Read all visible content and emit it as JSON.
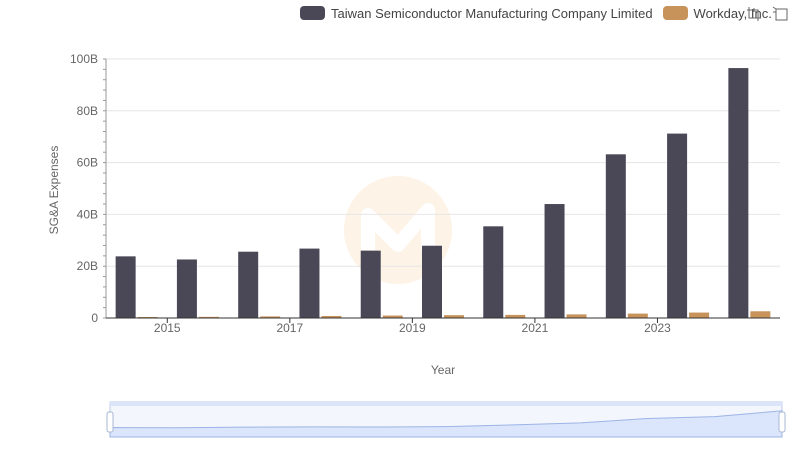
{
  "legend": {
    "items": [
      {
        "label": "Taiwan Semiconductor Manufacturing Company Limited",
        "color": "#4a4856"
      },
      {
        "label": "Workday, Inc.",
        "color": "#c8935a"
      }
    ]
  },
  "toolbox": {
    "icons": [
      "zoom-icon",
      "restore-icon"
    ]
  },
  "colors": {
    "tsmc": "#4a4856",
    "workday": "#c8935a",
    "grid": "#e6e6e6",
    "axis": "#333333",
    "slider_fill": "#dbe5fb",
    "slider_border": "#bccbe8"
  },
  "chart_data": {
    "type": "bar",
    "xlabel": "Year",
    "ylabel": "SG&A Expenses",
    "ylim": [
      0,
      100000000000
    ],
    "y_ticks": [
      "0",
      "20B",
      "40B",
      "60B",
      "80B",
      "100B"
    ],
    "x_tick_labels": [
      "2015",
      "2017",
      "2019",
      "2021",
      "2023"
    ],
    "categories": [
      "2014",
      "2015",
      "2016",
      "2017",
      "2018",
      "2019",
      "2020",
      "2021",
      "2022",
      "2023",
      "2024"
    ],
    "grid": true,
    "legend_position": "top-right",
    "series": [
      {
        "name": "Taiwan Semiconductor Manufacturing Company Limited",
        "values": [
          23800000000,
          22600000000,
          25600000000,
          26800000000,
          26000000000,
          27900000000,
          35400000000,
          44000000000,
          63200000000,
          71200000000,
          96500000000
        ]
      },
      {
        "name": "Workday, Inc.",
        "values": [
          300000000,
          450000000,
          620000000,
          780000000,
          950000000,
          1100000000,
          1200000000,
          1400000000,
          1700000000,
          2100000000,
          2600000000
        ]
      }
    ]
  }
}
